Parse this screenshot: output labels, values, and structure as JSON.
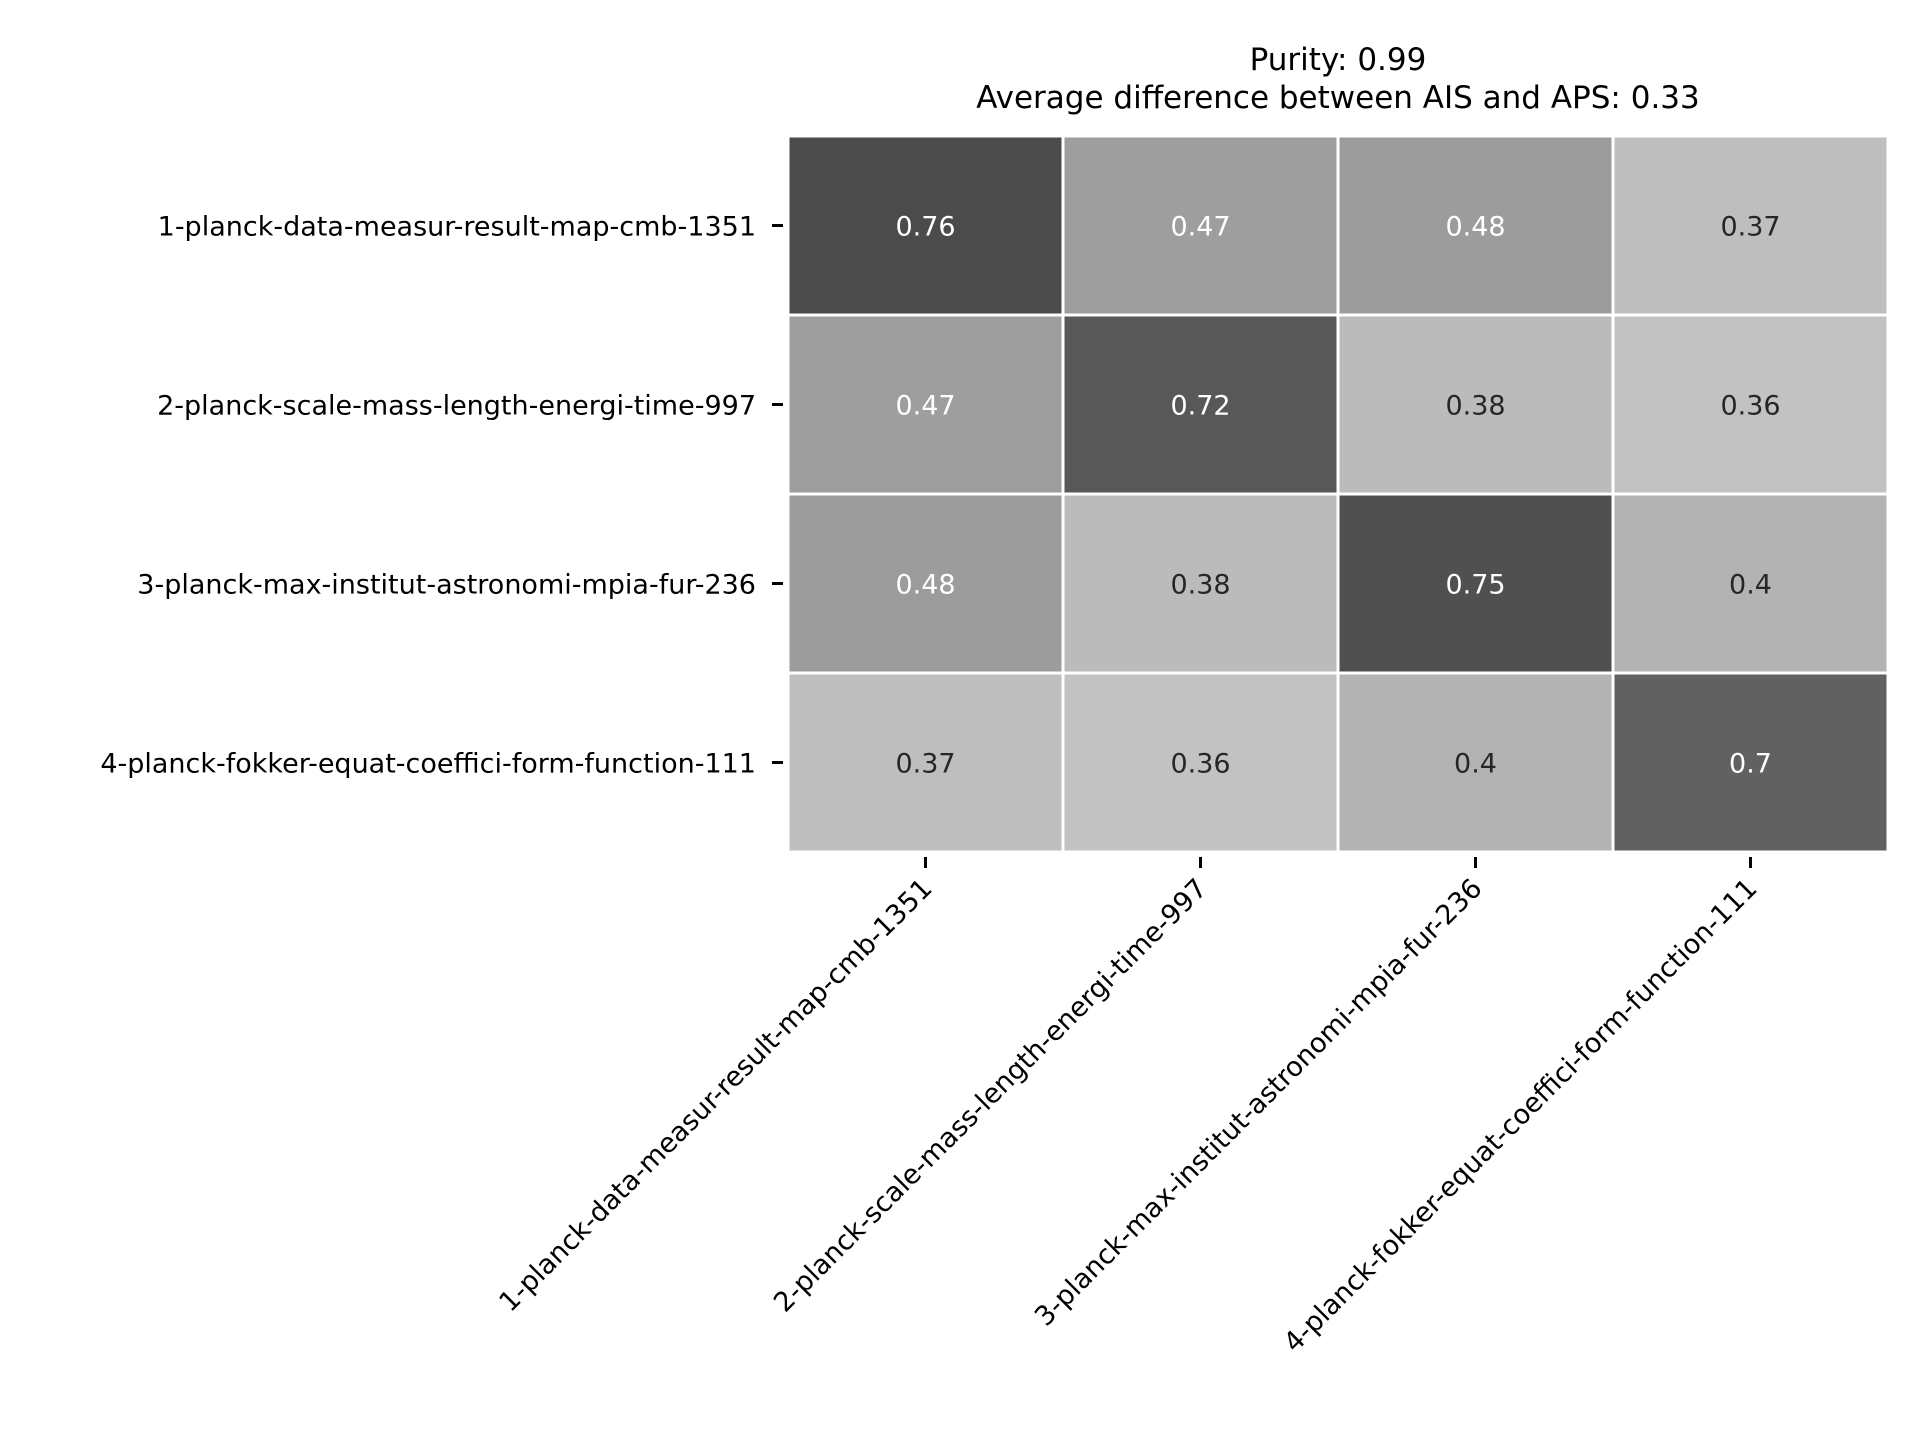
{
  "chart_data": {
    "type": "heatmap",
    "title_lines": [
      "Purity: 0.99",
      "Average difference between AIS and APS: 0.33"
    ],
    "row_labels": [
      "1-planck-data-measur-result-map-cmb-1351",
      "2-planck-scale-mass-length-energi-time-997",
      "3-planck-max-institut-astronomi-mpia-fur-236",
      "4-planck-fokker-equat-coeffici-form-function-111"
    ],
    "col_labels": [
      "1-planck-data-measur-result-map-cmb-1351",
      "2-planck-scale-mass-length-energi-time-997",
      "3-planck-max-institut-astronomi-mpia-fur-236",
      "4-planck-fokker-equat-coeffici-form-function-111"
    ],
    "values": [
      [
        0.76,
        0.47,
        0.48,
        0.37
      ],
      [
        0.47,
        0.72,
        0.38,
        0.36
      ],
      [
        0.48,
        0.38,
        0.75,
        0.4
      ],
      [
        0.37,
        0.36,
        0.4,
        0.7
      ]
    ],
    "value_labels": [
      [
        "0.76",
        "0.47",
        "0.48",
        "0.37"
      ],
      [
        "0.47",
        "0.72",
        "0.38",
        "0.36"
      ],
      [
        "0.48",
        "0.38",
        "0.75",
        "0.4"
      ],
      [
        "0.37",
        "0.36",
        "0.4",
        "0.7"
      ]
    ],
    "colormap": "Greys",
    "value_range": [
      0.0,
      1.0
    ],
    "grid": false,
    "legend": "none"
  }
}
